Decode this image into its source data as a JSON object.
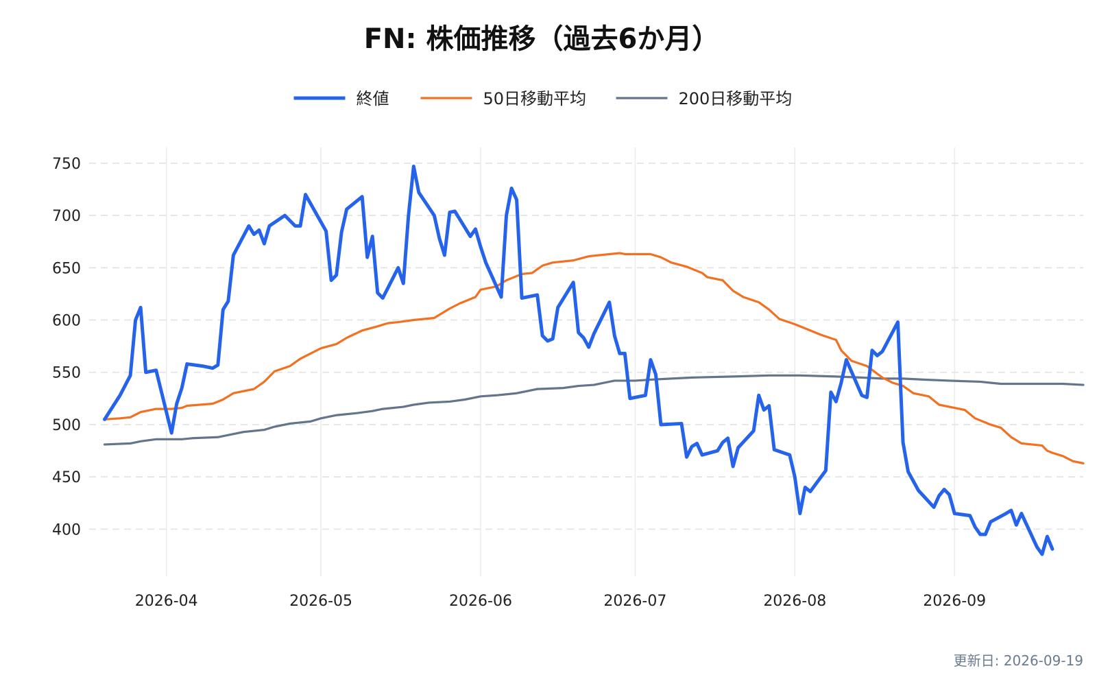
{
  "chart_data": {
    "type": "line",
    "title": "FN: 株価推移（過去6か月）",
    "xlabel": "",
    "ylabel": "",
    "x_start": "2026-03-20",
    "x_end": "2026-09-18",
    "xlim": [
      "2026-03-17",
      "2026-09-26"
    ],
    "ylim": [
      355,
      765
    ],
    "y_ticks": [
      400,
      450,
      500,
      550,
      600,
      650,
      700,
      750
    ],
    "x_ticks": [
      {
        "date": "2026-04-01",
        "label": "2026-04"
      },
      {
        "date": "2026-05-01",
        "label": "2026-05"
      },
      {
        "date": "2026-06-01",
        "label": "2026-06"
      },
      {
        "date": "2026-07-01",
        "label": "2026-07"
      },
      {
        "date": "2026-08-01",
        "label": "2026-08"
      },
      {
        "date": "2026-09-01",
        "label": "2026-09"
      }
    ],
    "grid": {
      "horizontal": true,
      "vertical": true
    },
    "legend_position": "top-center",
    "series": [
      {
        "name": "終値",
        "color": "#2563eb",
        "points": [
          [
            "2026-03-20",
            505
          ],
          [
            "2026-03-23",
            528
          ],
          [
            "2026-03-25",
            547
          ],
          [
            "2026-03-26",
            600
          ],
          [
            "2026-03-27",
            612
          ],
          [
            "2026-03-28",
            550
          ],
          [
            "2026-03-30",
            552
          ],
          [
            "2026-04-02",
            492
          ],
          [
            "2026-04-03",
            520
          ],
          [
            "2026-04-04",
            535
          ],
          [
            "2026-04-05",
            558
          ],
          [
            "2026-04-08",
            556
          ],
          [
            "2026-04-10",
            554
          ],
          [
            "2026-04-11",
            557
          ],
          [
            "2026-04-12",
            610
          ],
          [
            "2026-04-13",
            618
          ],
          [
            "2026-04-14",
            662
          ],
          [
            "2026-04-17",
            690
          ],
          [
            "2026-04-18",
            682
          ],
          [
            "2026-04-19",
            686
          ],
          [
            "2026-04-20",
            673
          ],
          [
            "2026-04-21",
            690
          ],
          [
            "2026-04-24",
            700
          ],
          [
            "2026-04-26",
            690
          ],
          [
            "2026-04-27",
            690
          ],
          [
            "2026-04-28",
            720
          ],
          [
            "2026-05-02",
            685
          ],
          [
            "2026-05-03",
            638
          ],
          [
            "2026-05-04",
            643
          ],
          [
            "2026-05-05",
            684
          ],
          [
            "2026-05-06",
            706
          ],
          [
            "2026-05-09",
            718
          ],
          [
            "2026-05-10",
            660
          ],
          [
            "2026-05-11",
            680
          ],
          [
            "2026-05-12",
            626
          ],
          [
            "2026-05-13",
            621
          ],
          [
            "2026-05-16",
            650
          ],
          [
            "2026-05-17",
            635
          ],
          [
            "2026-05-18",
            700
          ],
          [
            "2026-05-19",
            747
          ],
          [
            "2026-05-20",
            722
          ],
          [
            "2026-05-23",
            700
          ],
          [
            "2026-05-24",
            678
          ],
          [
            "2026-05-25",
            662
          ],
          [
            "2026-05-26",
            703
          ],
          [
            "2026-05-27",
            704
          ],
          [
            "2026-05-30",
            680
          ],
          [
            "2026-05-31",
            687
          ],
          [
            "2026-06-01",
            670
          ],
          [
            "2026-06-02",
            655
          ],
          [
            "2026-06-05",
            622
          ],
          [
            "2026-06-06",
            700
          ],
          [
            "2026-06-07",
            726
          ],
          [
            "2026-06-08",
            715
          ],
          [
            "2026-06-09",
            621
          ],
          [
            "2026-06-12",
            624
          ],
          [
            "2026-06-13",
            585
          ],
          [
            "2026-06-14",
            580
          ],
          [
            "2026-06-15",
            582
          ],
          [
            "2026-06-16",
            612
          ],
          [
            "2026-06-19",
            636
          ],
          [
            "2026-06-20",
            588
          ],
          [
            "2026-06-21",
            583
          ],
          [
            "2026-06-22",
            574
          ],
          [
            "2026-06-23",
            587
          ],
          [
            "2026-06-26",
            617
          ],
          [
            "2026-06-27",
            585
          ],
          [
            "2026-06-28",
            568
          ],
          [
            "2026-06-29",
            568
          ],
          [
            "2026-06-30",
            525
          ],
          [
            "2026-07-03",
            528
          ],
          [
            "2026-07-04",
            562
          ],
          [
            "2026-07-05",
            548
          ],
          [
            "2026-07-06",
            500
          ],
          [
            "2026-07-10",
            501
          ],
          [
            "2026-07-11",
            469
          ],
          [
            "2026-07-12",
            479
          ],
          [
            "2026-07-13",
            482
          ],
          [
            "2026-07-14",
            471
          ],
          [
            "2026-07-17",
            475
          ],
          [
            "2026-07-18",
            483
          ],
          [
            "2026-07-19",
            487
          ],
          [
            "2026-07-20",
            460
          ],
          [
            "2026-07-21",
            478
          ],
          [
            "2026-07-24",
            494
          ],
          [
            "2026-07-25",
            528
          ],
          [
            "2026-07-26",
            514
          ],
          [
            "2026-07-27",
            518
          ],
          [
            "2026-07-28",
            476
          ],
          [
            "2026-07-31",
            471
          ],
          [
            "2026-08-01",
            450
          ],
          [
            "2026-08-02",
            415
          ],
          [
            "2026-08-03",
            440
          ],
          [
            "2026-08-04",
            436
          ],
          [
            "2026-08-07",
            456
          ],
          [
            "2026-08-08",
            531
          ],
          [
            "2026-08-09",
            522
          ],
          [
            "2026-08-10",
            540
          ],
          [
            "2026-08-11",
            562
          ],
          [
            "2026-08-14",
            528
          ],
          [
            "2026-08-15",
            526
          ],
          [
            "2026-08-16",
            571
          ],
          [
            "2026-08-17",
            566
          ],
          [
            "2026-08-18",
            570
          ],
          [
            "2026-08-21",
            598
          ],
          [
            "2026-08-22",
            483
          ],
          [
            "2026-08-23",
            455
          ],
          [
            "2026-08-25",
            437
          ],
          [
            "2026-08-28",
            421
          ],
          [
            "2026-08-29",
            432
          ],
          [
            "2026-08-30",
            438
          ],
          [
            "2026-08-31",
            433
          ],
          [
            "2026-09-01",
            415
          ],
          [
            "2026-09-04",
            413
          ],
          [
            "2026-09-05",
            402
          ],
          [
            "2026-09-06",
            395
          ],
          [
            "2026-09-07",
            395
          ],
          [
            "2026-09-08",
            407
          ],
          [
            "2026-09-11",
            415
          ],
          [
            "2026-09-12",
            418
          ],
          [
            "2026-09-13",
            404
          ],
          [
            "2026-09-14",
            415
          ],
          [
            "2026-09-17",
            383
          ],
          [
            "2026-09-18",
            376
          ],
          [
            "2026-09-19",
            393
          ],
          [
            "2026-09-20",
            381
          ]
        ]
      },
      {
        "name": "50日移動平均",
        "color": "#f37021",
        "points": [
          [
            "2026-03-20",
            505
          ],
          [
            "2026-03-23",
            506
          ],
          [
            "2026-03-25",
            507
          ],
          [
            "2026-03-27",
            512
          ],
          [
            "2026-03-30",
            515
          ],
          [
            "2026-04-02",
            515
          ],
          [
            "2026-04-04",
            516
          ],
          [
            "2026-04-05",
            518
          ],
          [
            "2026-04-10",
            520
          ],
          [
            "2026-04-12",
            524
          ],
          [
            "2026-04-14",
            530
          ],
          [
            "2026-04-18",
            534
          ],
          [
            "2026-04-20",
            541
          ],
          [
            "2026-04-22",
            551
          ],
          [
            "2026-04-25",
            556
          ],
          [
            "2026-04-27",
            563
          ],
          [
            "2026-05-01",
            573
          ],
          [
            "2026-05-04",
            577
          ],
          [
            "2026-05-06",
            583
          ],
          [
            "2026-05-09",
            590
          ],
          [
            "2026-05-12",
            594
          ],
          [
            "2026-05-14",
            597
          ],
          [
            "2026-05-16",
            598
          ],
          [
            "2026-05-19",
            600
          ],
          [
            "2026-05-23",
            602
          ],
          [
            "2026-05-26",
            611
          ],
          [
            "2026-05-28",
            616
          ],
          [
            "2026-05-31",
            622
          ],
          [
            "2026-06-01",
            629
          ],
          [
            "2026-06-04",
            632
          ],
          [
            "2026-06-06",
            638
          ],
          [
            "2026-06-09",
            644
          ],
          [
            "2026-06-11",
            645
          ],
          [
            "2026-06-13",
            652
          ],
          [
            "2026-06-15",
            655
          ],
          [
            "2026-06-19",
            657
          ],
          [
            "2026-06-22",
            661
          ],
          [
            "2026-06-26",
            663
          ],
          [
            "2026-06-28",
            664
          ],
          [
            "2026-06-29",
            663
          ],
          [
            "2026-07-01",
            663
          ],
          [
            "2026-07-04",
            663
          ],
          [
            "2026-07-06",
            660
          ],
          [
            "2026-07-08",
            655
          ],
          [
            "2026-07-11",
            651
          ],
          [
            "2026-07-14",
            645
          ],
          [
            "2026-07-15",
            641
          ],
          [
            "2026-07-18",
            638
          ],
          [
            "2026-07-20",
            628
          ],
          [
            "2026-07-22",
            622
          ],
          [
            "2026-07-25",
            617
          ],
          [
            "2026-07-27",
            610
          ],
          [
            "2026-07-29",
            601
          ],
          [
            "2026-08-01",
            596
          ],
          [
            "2026-08-04",
            590
          ],
          [
            "2026-08-06",
            586
          ],
          [
            "2026-08-09",
            581
          ],
          [
            "2026-08-10",
            571
          ],
          [
            "2026-08-12",
            561
          ],
          [
            "2026-08-15",
            556
          ],
          [
            "2026-08-18",
            545
          ],
          [
            "2026-08-20",
            540
          ],
          [
            "2026-08-22",
            537
          ],
          [
            "2026-08-24",
            530
          ],
          [
            "2026-08-27",
            527
          ],
          [
            "2026-08-29",
            519
          ],
          [
            "2026-09-01",
            516
          ],
          [
            "2026-09-03",
            514
          ],
          [
            "2026-09-05",
            506
          ],
          [
            "2026-09-08",
            500
          ],
          [
            "2026-09-10",
            497
          ],
          [
            "2026-09-12",
            488
          ],
          [
            "2026-09-14",
            482
          ],
          [
            "2026-09-18",
            480
          ],
          [
            "2026-09-19",
            475
          ],
          [
            "2026-09-20",
            473
          ],
          [
            "2026-09-22",
            470
          ],
          [
            "2026-09-24",
            465
          ],
          [
            "2026-09-26",
            463
          ]
        ]
      },
      {
        "name": "200日移動平均",
        "color": "#64748b",
        "points": [
          [
            "2026-03-20",
            481
          ],
          [
            "2026-03-25",
            482
          ],
          [
            "2026-03-27",
            484
          ],
          [
            "2026-03-30",
            486
          ],
          [
            "2026-04-04",
            486
          ],
          [
            "2026-04-06",
            487
          ],
          [
            "2026-04-11",
            488
          ],
          [
            "2026-04-13",
            490
          ],
          [
            "2026-04-16",
            493
          ],
          [
            "2026-04-20",
            495
          ],
          [
            "2026-04-22",
            498
          ],
          [
            "2026-04-25",
            501
          ],
          [
            "2026-04-29",
            503
          ],
          [
            "2026-05-01",
            506
          ],
          [
            "2026-05-04",
            509
          ],
          [
            "2026-05-08",
            511
          ],
          [
            "2026-05-11",
            513
          ],
          [
            "2026-05-13",
            515
          ],
          [
            "2026-05-17",
            517
          ],
          [
            "2026-05-19",
            519
          ],
          [
            "2026-05-22",
            521
          ],
          [
            "2026-05-26",
            522
          ],
          [
            "2026-05-29",
            524
          ],
          [
            "2026-06-01",
            527
          ],
          [
            "2026-06-04",
            528
          ],
          [
            "2026-06-08",
            530
          ],
          [
            "2026-06-10",
            532
          ],
          [
            "2026-06-12",
            534
          ],
          [
            "2026-06-17",
            535
          ],
          [
            "2026-06-20",
            537
          ],
          [
            "2026-06-23",
            538
          ],
          [
            "2026-06-25",
            540
          ],
          [
            "2026-06-27",
            542
          ],
          [
            "2026-07-01",
            542
          ],
          [
            "2026-07-04",
            543
          ],
          [
            "2026-07-08",
            544
          ],
          [
            "2026-07-12",
            545
          ],
          [
            "2026-07-20",
            546
          ],
          [
            "2026-07-27",
            547
          ],
          [
            "2026-08-02",
            547
          ],
          [
            "2026-08-09",
            546
          ],
          [
            "2026-08-14",
            545
          ],
          [
            "2026-08-18",
            544
          ],
          [
            "2026-08-22",
            544
          ],
          [
            "2026-08-26",
            543
          ],
          [
            "2026-08-31",
            542
          ],
          [
            "2026-09-06",
            541
          ],
          [
            "2026-09-08",
            540
          ],
          [
            "2026-09-10",
            539
          ],
          [
            "2026-09-14",
            539
          ],
          [
            "2026-09-18",
            539
          ],
          [
            "2026-09-22",
            539
          ],
          [
            "2026-09-26",
            538
          ]
        ]
      }
    ]
  },
  "footer": {
    "updated_label": "更新日: 2026-09-19"
  }
}
